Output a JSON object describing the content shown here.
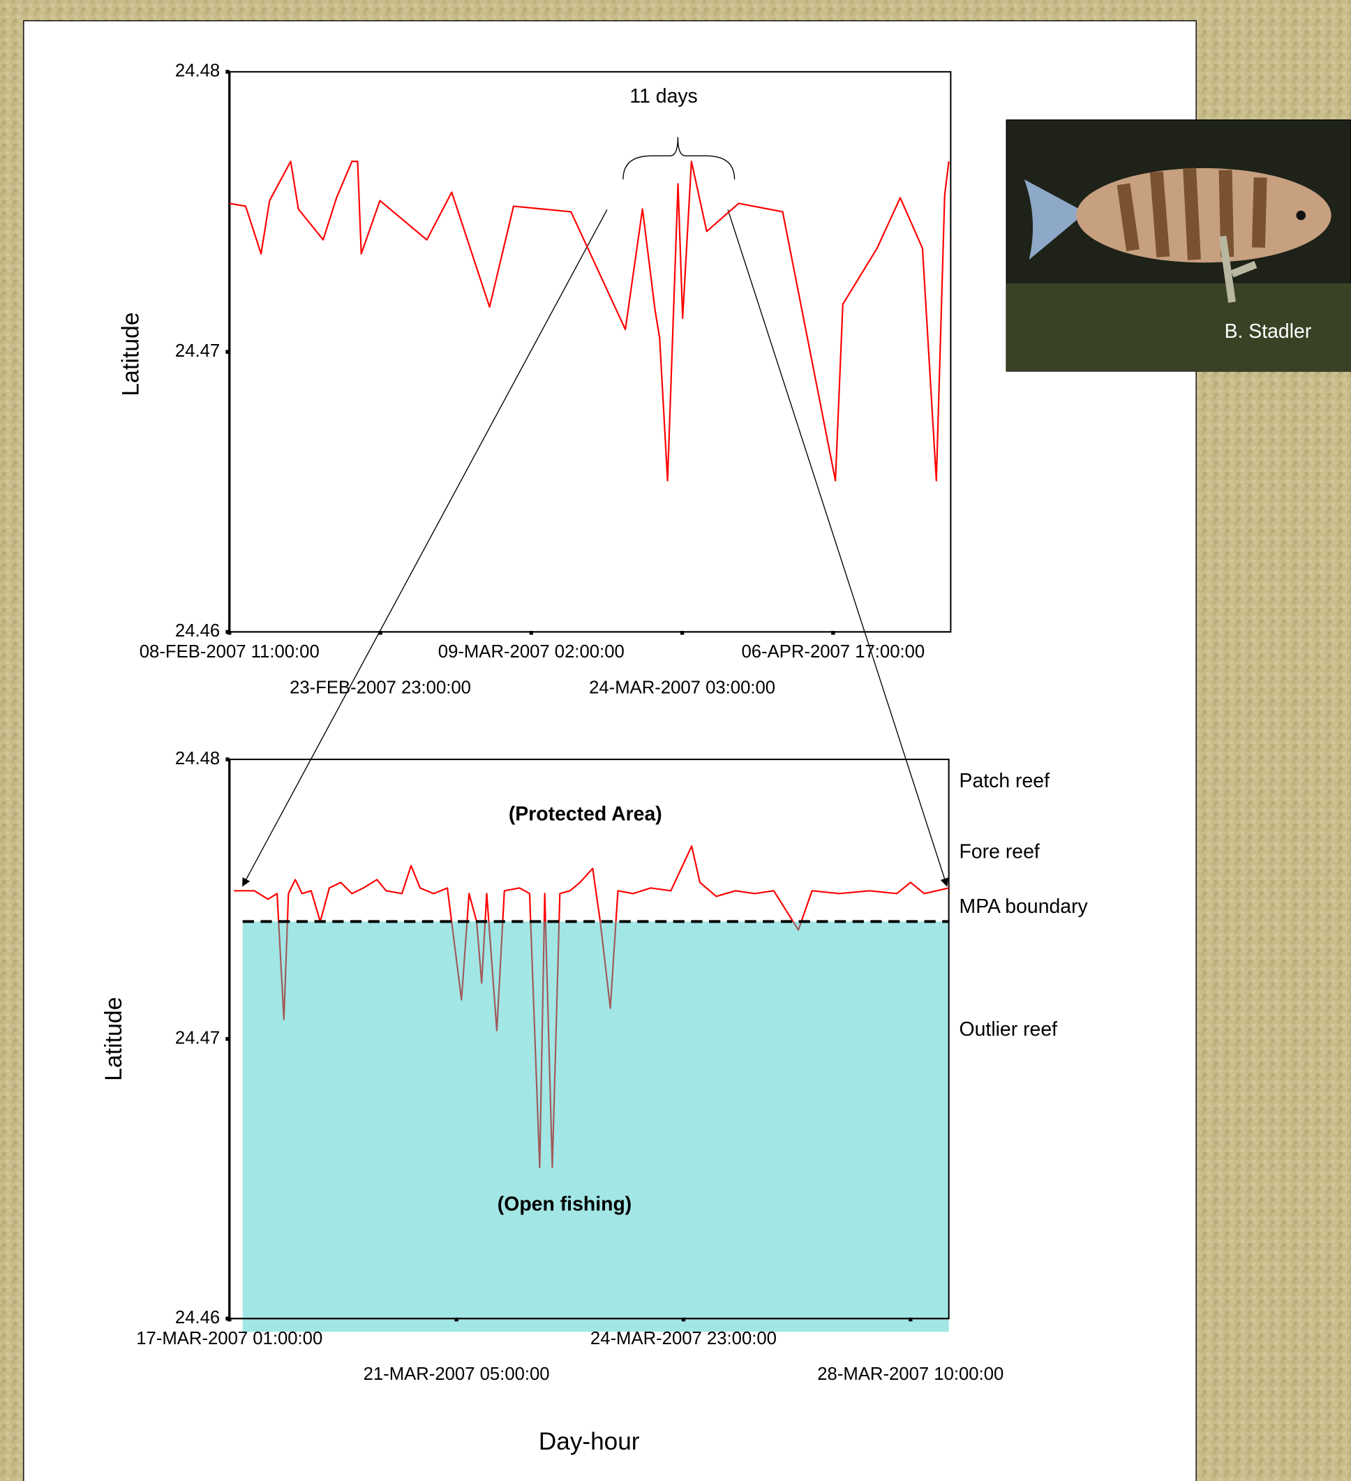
{
  "photo_credit": "B. Stadler",
  "chart_data": [
    {
      "type": "line",
      "ylabel": "Latitude",
      "annotation": "11 days",
      "xlim": [
        "2007-02-08T11:00",
        "2007-04-17T07:00"
      ],
      "xticks": [
        {
          "value": "2007-02-08T11:00",
          "label": "08-FEB-2007 11:00:00"
        },
        {
          "value": "2007-02-23T23:00",
          "label": "23-FEB-2007 23:00:00"
        },
        {
          "value": "2007-03-09T02:00",
          "label": "09-MAR-2007 02:00:00"
        },
        {
          "value": "2007-03-24T03:00",
          "label": "24-MAR-2007 03:00:00"
        },
        {
          "value": "2007-04-06T17:00",
          "label": "06-APR-2007 17:00:00"
        }
      ],
      "ylim": [
        24.46,
        24.48
      ],
      "yticks": [
        24.46,
        24.47,
        24.48
      ],
      "x": [
        "2007-02-08T11:00",
        "2007-02-10T03:00",
        "2007-02-11T17:00",
        "2007-02-12T14:00",
        "2007-02-14T18:00",
        "2007-02-15T13:00",
        "2007-02-18T02:00",
        "2007-02-19T11:00",
        "2007-02-21T01:00",
        "2007-02-21T15:00",
        "2007-02-22T00:00",
        "2007-02-23T22:00",
        "2007-02-28T00:00",
        "2007-03-02T04:00",
        "2007-03-05T11:00",
        "2007-03-07T13:00",
        "2007-03-13T01:00",
        "2007-03-18T11:00",
        "2007-03-20T04:00",
        "2007-03-21T10:00",
        "2007-03-21T21:00",
        "2007-03-22T16:00",
        "2007-03-23T17:00",
        "2007-03-24T04:00",
        "2007-03-24T23:00",
        "2007-03-26T08:00",
        "2007-03-29T05:00",
        "2007-04-02T04:00",
        "2007-04-06T22:00",
        "2007-04-07T14:00",
        "2007-04-10T16:00",
        "2007-04-12T18:00",
        "2007-04-14T18:00",
        "2007-04-16T00:00",
        "2007-04-16T18:00",
        "2007-04-17T03:00"
      ],
      "series": [
        {
          "color": "#ff0000",
          "values": [
            24.4753,
            24.4752,
            24.4735,
            24.4754,
            24.4768,
            24.4751,
            24.474,
            24.4755,
            24.4768,
            24.4768,
            24.4735,
            24.4754,
            24.474,
            24.4757,
            24.4716,
            24.4752,
            24.475,
            24.4708,
            24.4751,
            24.4715,
            24.4705,
            24.4654,
            24.476,
            24.4712,
            24.4768,
            24.4743,
            24.4753,
            24.475,
            24.4654,
            24.4717,
            24.4737,
            24.4755,
            24.4737,
            24.4654,
            24.4756,
            24.4768
          ]
        }
      ]
    },
    {
      "type": "line",
      "xlabel": "Day-hour",
      "ylabel": "Latitude",
      "annotations": [
        "(Protected Area)",
        "(Open fishing)"
      ],
      "region_labels": [
        "Patch reef",
        "Fore reef",
        "MPA boundary",
        "Outlier reef"
      ],
      "boundary": 24.4742,
      "fill_color": "#a3e6e6",
      "below_color": "#a05a5a",
      "xlim": [
        "2007-03-17T01:00",
        "2007-03-29T00:00"
      ],
      "xticks": [
        {
          "value": "2007-03-17T01:00",
          "label": "17-MAR-2007 01:00:00"
        },
        {
          "value": "2007-03-21T05:00",
          "label": "21-MAR-2007 05:00:00"
        },
        {
          "value": "2007-03-24T23:00",
          "label": "24-MAR-2007 23:00:00"
        },
        {
          "value": "2007-03-28T10:00",
          "label": "28-MAR-2007 10:00:00"
        }
      ],
      "ylim": [
        24.46,
        24.48
      ],
      "yticks": [
        24.46,
        24.47,
        24.48
      ],
      "x": [
        "2007-03-17T03:00",
        "2007-03-17T07:00",
        "2007-03-17T12:00",
        "2007-03-17T18:00",
        "2007-03-17T22:00",
        "2007-03-18T01:00",
        "2007-03-18T03:00",
        "2007-03-18T06:00",
        "2007-03-18T09:00",
        "2007-03-18T13:00",
        "2007-03-18T17:00",
        "2007-03-18T21:00",
        "2007-03-19T02:00",
        "2007-03-19T07:00",
        "2007-03-19T12:00",
        "2007-03-19T18:00",
        "2007-03-19T22:00",
        "2007-03-20T05:00",
        "2007-03-20T09:00",
        "2007-03-20T13:00",
        "2007-03-20T19:00",
        "2007-03-21T01:00",
        "2007-03-21T07:00",
        "2007-03-21T10:00",
        "2007-03-21T13:00",
        "2007-03-21T15:00",
        "2007-03-21T17:00",
        "2007-03-21T21:00",
        "2007-03-22T00:00",
        "2007-03-22T06:00",
        "2007-03-22T10:00",
        "2007-03-22T14:00",
        "2007-03-22T16:00",
        "2007-03-22T19:00",
        "2007-03-22T22:00",
        "2007-03-23T02:00",
        "2007-03-23T06:00",
        "2007-03-23T11:00",
        "2007-03-23T14:00",
        "2007-03-23T18:00",
        "2007-03-23T21:00",
        "2007-03-24T03:00",
        "2007-03-24T10:00",
        "2007-03-24T18:00",
        "2007-03-25T02:00",
        "2007-03-25T05:00",
        "2007-03-25T11:00",
        "2007-03-25T18:00",
        "2007-03-26T01:00",
        "2007-03-26T08:00",
        "2007-03-26T17:00",
        "2007-03-26T22:00",
        "2007-03-27T08:00",
        "2007-03-27T19:00",
        "2007-03-28T05:00",
        "2007-03-28T10:00",
        "2007-03-28T15:00",
        "2007-03-29T00:00"
      ],
      "series": [
        {
          "color": "#ff0000",
          "values": [
            24.4753,
            24.4753,
            24.4753,
            24.475,
            24.4752,
            24.4707,
            24.4752,
            24.4757,
            24.4752,
            24.4753,
            24.4742,
            24.4754,
            24.4756,
            24.4752,
            24.4754,
            24.4757,
            24.4753,
            24.4752,
            24.4762,
            24.4754,
            24.4752,
            24.4754,
            24.4714,
            24.4752,
            24.4742,
            24.472,
            24.4752,
            24.4703,
            24.4753,
            24.4754,
            24.4752,
            24.4654,
            24.4752,
            24.4654,
            24.4752,
            24.4753,
            24.4756,
            24.4761,
            24.4742,
            24.4711,
            24.4753,
            24.4752,
            24.4754,
            24.4753,
            24.4769,
            24.4756,
            24.4751,
            24.4753,
            24.4752,
            24.4753,
            24.4739,
            24.4753,
            24.4752,
            24.4753,
            24.4752,
            24.4756,
            24.4752,
            24.4754
          ]
        }
      ]
    }
  ]
}
